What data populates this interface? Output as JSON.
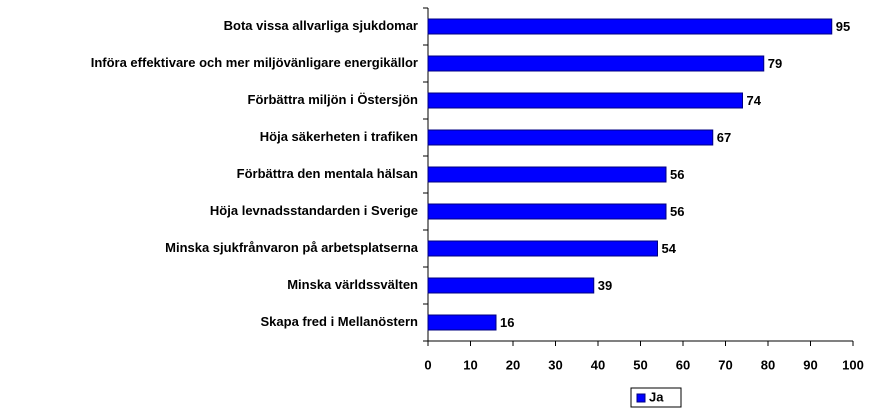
{
  "chart_data": {
    "type": "barh",
    "categories": [
      "Bota vissa allvarliga sjukdomar",
      "Införa effektivare och mer miljövänligare energikällor",
      "Förbättra miljön i Östersjön",
      "Höja säkerheten i trafiken",
      "Förbättra den mentala hälsan",
      "Höja levnadsstandarden i Sverige",
      "Minska sjukfrånvaron på arbetsplatserna",
      "Minska världssvälten",
      "Skapa fred i Mellanöstern"
    ],
    "series": [
      {
        "name": "Ja",
        "color": "#0000ff",
        "values": [
          95,
          79,
          74,
          67,
          56,
          56,
          54,
          39,
          16
        ]
      }
    ],
    "xlim": [
      0,
      100
    ],
    "xticks": [
      0,
      10,
      20,
      30,
      40,
      50,
      60,
      70,
      80,
      90,
      100
    ],
    "grid": false,
    "legend": "bottom"
  }
}
